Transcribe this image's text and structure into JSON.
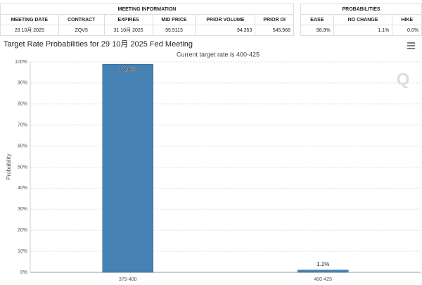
{
  "meeting_table": {
    "title": "MEETING INFORMATION",
    "headers": [
      "MEETING DATE",
      "CONTRACT",
      "EXPIRES",
      "MID PRICE",
      "PRIOR VOLUME",
      "PRIOR OI"
    ],
    "rows": [
      [
        "29 10月 2025",
        "ZQV5",
        "31 10月 2025",
        "95.9113",
        "94,353",
        "545,966"
      ]
    ]
  },
  "probabilities_table": {
    "title": "PROBABILITIES",
    "headers": [
      "EASE",
      "NO CHANGE",
      "HIKE"
    ],
    "rows": [
      [
        "98.9%",
        "1.1%",
        "0.0%"
      ]
    ]
  },
  "chart_data": {
    "type": "bar",
    "title": "Target Rate Probabilities for 29 10月 2025 Fed Meeting",
    "subtitle": "Current target rate is 400-425",
    "y_label": "Probability",
    "categories": [
      "375-400",
      "400-425"
    ],
    "values": [
      98.9,
      1.1
    ],
    "value_labels": [
      "98.9%",
      "1.1%"
    ],
    "color": "#4682b4",
    "ylim": [
      0,
      100
    ],
    "yticks": [
      {
        "value": 0,
        "label": "0%"
      },
      {
        "value": 10,
        "label": "10%"
      },
      {
        "value": 20,
        "label": "20%"
      },
      {
        "value": 30,
        "label": "30%"
      },
      {
        "value": 40,
        "label": "40%"
      },
      {
        "value": 50,
        "label": "50%"
      },
      {
        "value": 60,
        "label": "60%"
      },
      {
        "value": 70,
        "label": "70%"
      },
      {
        "value": 80,
        "label": "80%"
      },
      {
        "value": 90,
        "label": "90%"
      },
      {
        "value": 100,
        "label": "100%"
      }
    ],
    "grid": true
  }
}
